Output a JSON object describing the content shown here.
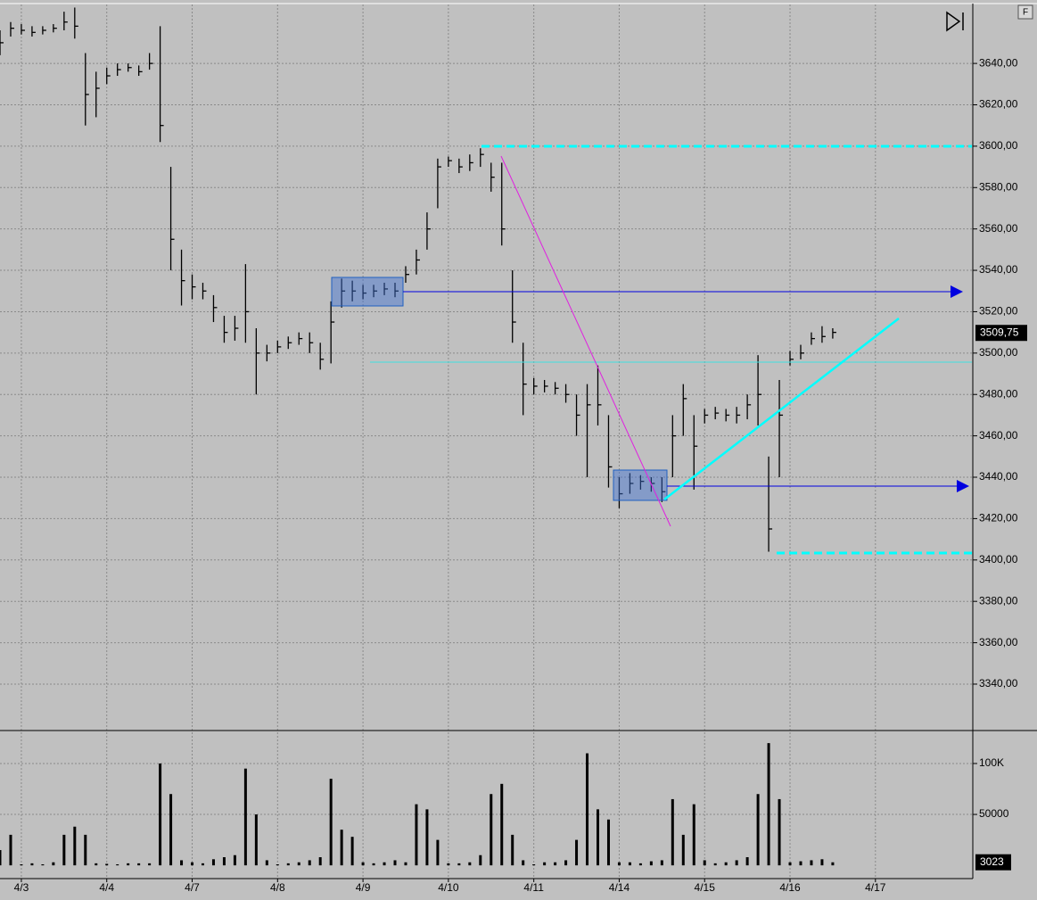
{
  "chart_data": [
    {
      "type": "ohlc",
      "color": "#000000",
      "grid": true,
      "x": [
        -0.25,
        -0.125,
        0,
        0.125,
        0.25,
        0.375,
        0.5,
        0.625,
        0.75,
        0.875,
        1,
        1.125,
        1.25,
        1.375,
        1.5,
        1.625,
        1.75,
        1.875,
        2,
        2.125,
        2.25,
        2.375,
        2.5,
        2.625,
        2.75,
        2.875,
        3,
        3.125,
        3.25,
        3.375,
        3.5,
        3.625,
        3.75,
        3.875,
        4,
        4.125,
        4.25,
        4.375,
        4.5,
        4.625,
        4.75,
        4.875,
        5,
        5.125,
        5.25,
        5.375,
        5.5,
        5.625,
        5.75,
        5.875,
        6,
        6.125,
        6.25,
        6.375,
        6.5,
        6.625,
        6.75,
        6.875,
        7,
        7.125,
        7.25,
        7.375,
        7.5,
        7.625,
        7.75,
        7.875,
        8,
        8.125,
        8.25,
        8.375,
        8.5,
        8.625,
        8.75,
        8.875,
        9,
        9.125,
        9.25,
        9.375,
        9.5
      ],
      "high": [
        3656,
        3660,
        3659,
        3658,
        3658,
        3659,
        3665,
        3667,
        3645,
        3636,
        3638,
        3640,
        3640,
        3639,
        3645,
        3658,
        3590,
        3550,
        3538,
        3534,
        3528,
        3518,
        3518,
        3543,
        3512,
        3504,
        3506,
        3508,
        3510,
        3510,
        3505,
        3525,
        3536,
        3535,
        3533,
        3533,
        3534,
        3534,
        3542,
        3550,
        3568,
        3594,
        3595,
        3594,
        3596,
        3599,
        3592,
        3592,
        3540,
        3505,
        3488,
        3487,
        3486,
        3485,
        3480,
        3485,
        3494,
        3470,
        3440,
        3442,
        3441,
        3440,
        3440,
        3470,
        3485,
        3470,
        3473,
        3474,
        3473,
        3474,
        3480,
        3499,
        3450,
        3487,
        3501,
        3504,
        3510,
        3513,
        3512
      ],
      "low": [
        3644,
        3653,
        3654,
        3653,
        3654,
        3655,
        3656,
        3652,
        3610,
        3614,
        3630,
        3634,
        3636,
        3634,
        3637,
        3602,
        3540,
        3523,
        3526,
        3526,
        3515,
        3505,
        3506,
        3505,
        3480,
        3496,
        3500,
        3502,
        3504,
        3500,
        3492,
        3495,
        3522,
        3525,
        3526,
        3527,
        3528,
        3527,
        3534,
        3538,
        3550,
        3570,
        3590,
        3587,
        3588,
        3590,
        3578,
        3552,
        3505,
        3470,
        3480,
        3481,
        3480,
        3476,
        3460,
        3440,
        3465,
        3435,
        3425,
        3432,
        3434,
        3433,
        3428,
        3440,
        3460,
        3434,
        3466,
        3468,
        3467,
        3466,
        3468,
        3465,
        3404,
        3440,
        3494,
        3497,
        3504,
        3505,
        3507
      ],
      "close": [
        3650,
        3657,
        3656,
        3655,
        3656,
        3657,
        3660,
        3658,
        3625,
        3628,
        3634,
        3637,
        3638,
        3636,
        3640,
        3610,
        3555,
        3535,
        3532,
        3530,
        3522,
        3510,
        3512,
        3520,
        3500,
        3500,
        3503,
        3505,
        3507,
        3505,
        3497,
        3515,
        3530,
        3530,
        3529,
        3530,
        3531,
        3530,
        3538,
        3545,
        3560,
        3590,
        3593,
        3590,
        3592,
        3596,
        3585,
        3560,
        3515,
        3485,
        3484,
        3484,
        3483,
        3480,
        3470,
        3475,
        3475,
        3445,
        3432,
        3437,
        3438,
        3437,
        3433,
        3460,
        3478,
        3455,
        3470,
        3471,
        3470,
        3470,
        3475,
        3480,
        3415,
        3470,
        3497,
        3500,
        3507,
        3508,
        3510
      ],
      "xlim": [
        -0.25,
        11.14
      ],
      "ylim": [
        3318,
        3668.5
      ],
      "yticks": [
        {
          "value": 3340,
          "label": "3340,00"
        },
        {
          "value": 3360,
          "label": "3360,00"
        },
        {
          "value": 3380,
          "label": "3380,00"
        },
        {
          "value": 3400,
          "label": "3400,00"
        },
        {
          "value": 3420,
          "label": "3420,00"
        },
        {
          "value": 3440,
          "label": "3440,00"
        },
        {
          "value": 3460,
          "label": "3460,00"
        },
        {
          "value": 3480,
          "label": "3480,00"
        },
        {
          "value": 3500,
          "label": "3500,00"
        },
        {
          "value": 3520,
          "label": "3520,00"
        },
        {
          "value": 3540,
          "label": "3540,00"
        },
        {
          "value": 3560,
          "label": "3560,00"
        },
        {
          "value": 3580,
          "label": "3580,00"
        },
        {
          "value": 3600,
          "label": "3600,00"
        },
        {
          "value": 3620,
          "label": "3620,00"
        },
        {
          "value": 3640,
          "label": "3640,00"
        }
      ],
      "last_price": {
        "value": 3509.75,
        "label": "3509,75"
      }
    },
    {
      "type": "bar",
      "color": "#000000",
      "grid": true,
      "x": [
        -0.25,
        -0.125,
        0,
        0.125,
        0.25,
        0.375,
        0.5,
        0.625,
        0.75,
        0.875,
        1,
        1.125,
        1.25,
        1.375,
        1.5,
        1.625,
        1.75,
        1.875,
        2,
        2.125,
        2.25,
        2.375,
        2.5,
        2.625,
        2.75,
        2.875,
        3,
        3.125,
        3.25,
        3.375,
        3.5,
        3.625,
        3.75,
        3.875,
        4,
        4.125,
        4.25,
        4.375,
        4.5,
        4.625,
        4.75,
        4.875,
        5,
        5.125,
        5.25,
        5.375,
        5.5,
        5.625,
        5.75,
        5.875,
        6,
        6.125,
        6.25,
        6.375,
        6.5,
        6.625,
        6.75,
        6.875,
        7,
        7.125,
        7.25,
        7.375,
        7.5,
        7.625,
        7.75,
        7.875,
        8,
        8.125,
        8.25,
        8.375,
        8.5,
        8.625,
        8.75,
        8.875,
        9,
        9.125,
        9.25,
        9.375,
        9.5
      ],
      "values": [
        15000,
        30000,
        1000,
        2000,
        1000,
        3000,
        30000,
        38000,
        30000,
        2000,
        1500,
        1000,
        2000,
        2000,
        2000,
        100000,
        70000,
        5000,
        3000,
        2000,
        6000,
        8000,
        10000,
        95000,
        50000,
        5000,
        1000,
        2000,
        3000,
        5000,
        8000,
        85000,
        35000,
        28000,
        3000,
        2000,
        3000,
        5000,
        3000,
        60000,
        55000,
        25000,
        2000,
        2000,
        3000,
        10000,
        70000,
        80000,
        30000,
        5000,
        1000,
        3000,
        3000,
        5000,
        25000,
        110000,
        55000,
        45000,
        3000,
        3000,
        2000,
        4000,
        5000,
        65000,
        30000,
        60000,
        5000,
        2000,
        3000,
        5000,
        8000,
        70000,
        120000,
        65000,
        3000,
        4000,
        5000,
        6000,
        3000
      ],
      "xlim": [
        -0.25,
        11.14
      ],
      "ylim": [
        -13000,
        131500
      ],
      "yticks": [
        50000,
        {
          "value": 100000,
          "label": "100K"
        }
      ],
      "xticks": [
        {
          "value": 0,
          "label": "4/3"
        },
        {
          "value": 1,
          "label": "4/4"
        },
        {
          "value": 2,
          "label": "4/7"
        },
        {
          "value": 3,
          "label": "4/8"
        },
        {
          "value": 4,
          "label": "4/9"
        },
        {
          "value": 5,
          "label": "4/10"
        },
        {
          "value": 6,
          "label": "4/11"
        },
        {
          "value": 7,
          "label": "4/14"
        },
        {
          "value": 8,
          "label": "4/15"
        },
        {
          "value": 9,
          "label": "4/16"
        },
        {
          "value": 10,
          "label": "4/17"
        }
      ],
      "last_value": 3023
    }
  ]
}
